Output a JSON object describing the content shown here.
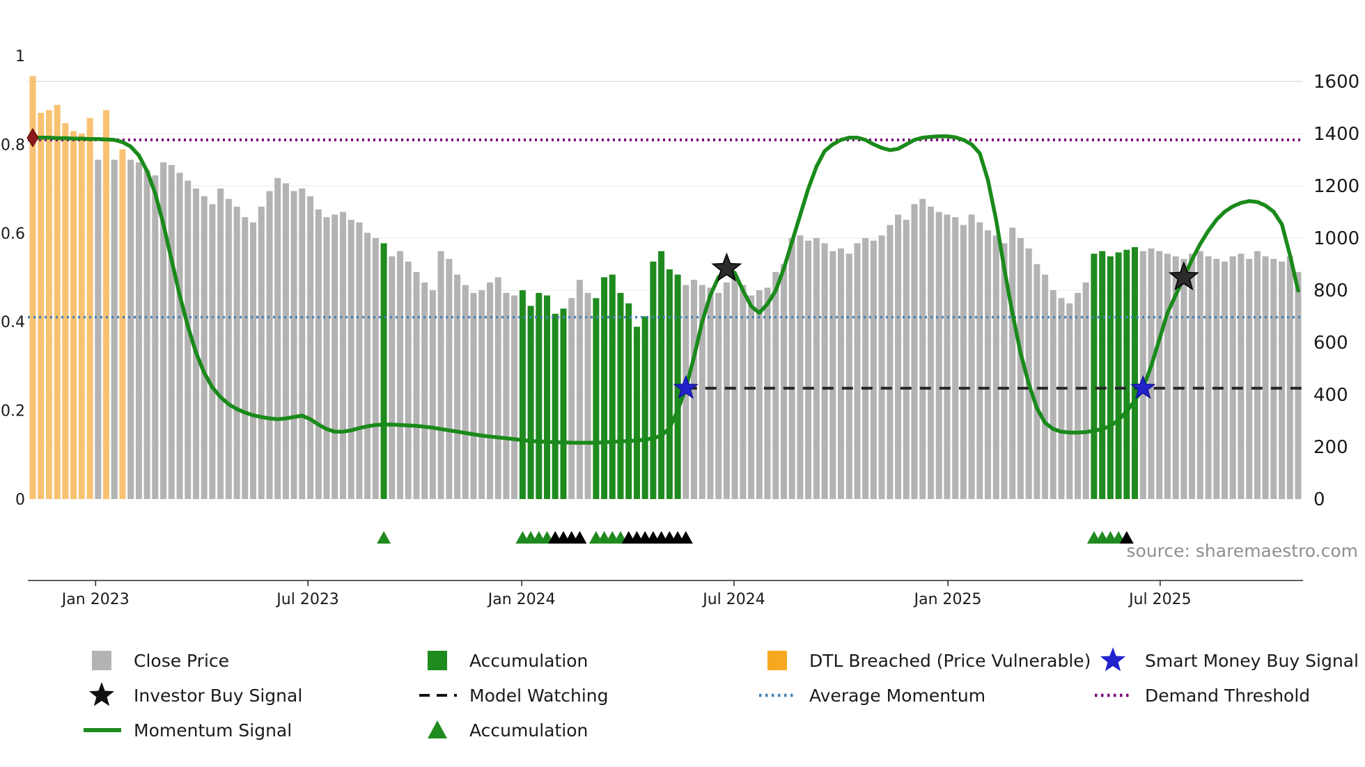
{
  "chart_data": {
    "type": "bar",
    "title": "",
    "annotations": {
      "source": "source: sharemaestro.com"
    },
    "left_axis": {
      "labels": [
        "0",
        "0.2",
        "0.4",
        "0.6",
        "0.8",
        "1"
      ],
      "values": [
        0,
        0.2,
        0.4,
        0.6,
        0.8,
        1
      ],
      "range": [
        0,
        1
      ]
    },
    "right_axis": {
      "values": [
        0,
        200,
        400,
        600,
        800,
        1000,
        1200,
        1400,
        1600
      ],
      "range": [
        0,
        1600
      ]
    },
    "x_ticks": [
      {
        "label": "Jan 2023",
        "i": 7.7
      },
      {
        "label": "Jul 2023",
        "i": 33.7
      },
      {
        "label": "Jan 2024",
        "i": 59.9
      },
      {
        "label": "Jul 2024",
        "i": 85.9
      },
      {
        "label": "Jan 2025",
        "i": 112.1
      },
      {
        "label": "Jul 2025",
        "i": 138.1
      }
    ],
    "bar_category_legend": {
      "g": "Close Price",
      "d": "DTL Breached (Price Vulnerable)",
      "a": "Accumulation"
    },
    "bars": [
      [
        1620,
        "d"
      ],
      [
        1480,
        "d"
      ],
      [
        1490,
        "d"
      ],
      [
        1510,
        "d"
      ],
      [
        1440,
        "d"
      ],
      [
        1410,
        "d"
      ],
      [
        1400,
        "d"
      ],
      [
        1460,
        "d"
      ],
      [
        1300,
        "g"
      ],
      [
        1490,
        "d"
      ],
      [
        1300,
        "g"
      ],
      [
        1340,
        "d"
      ],
      [
        1300,
        "g"
      ],
      [
        1290,
        "g"
      ],
      [
        1260,
        "g"
      ],
      [
        1240,
        "g"
      ],
      [
        1290,
        "g"
      ],
      [
        1280,
        "g"
      ],
      [
        1250,
        "g"
      ],
      [
        1220,
        "g"
      ],
      [
        1190,
        "g"
      ],
      [
        1160,
        "g"
      ],
      [
        1130,
        "g"
      ],
      [
        1190,
        "g"
      ],
      [
        1150,
        "g"
      ],
      [
        1120,
        "g"
      ],
      [
        1080,
        "g"
      ],
      [
        1060,
        "g"
      ],
      [
        1120,
        "g"
      ],
      [
        1180,
        "g"
      ],
      [
        1230,
        "g"
      ],
      [
        1210,
        "g"
      ],
      [
        1180,
        "g"
      ],
      [
        1190,
        "g"
      ],
      [
        1160,
        "g"
      ],
      [
        1110,
        "g"
      ],
      [
        1080,
        "g"
      ],
      [
        1090,
        "g"
      ],
      [
        1100,
        "g"
      ],
      [
        1070,
        "g"
      ],
      [
        1060,
        "g"
      ],
      [
        1020,
        "g"
      ],
      [
        1000,
        "g"
      ],
      [
        980,
        "a"
      ],
      [
        930,
        "g"
      ],
      [
        950,
        "g"
      ],
      [
        910,
        "g"
      ],
      [
        870,
        "g"
      ],
      [
        830,
        "g"
      ],
      [
        800,
        "g"
      ],
      [
        950,
        "g"
      ],
      [
        920,
        "g"
      ],
      [
        860,
        "g"
      ],
      [
        820,
        "g"
      ],
      [
        790,
        "g"
      ],
      [
        800,
        "g"
      ],
      [
        830,
        "g"
      ],
      [
        850,
        "g"
      ],
      [
        790,
        "g"
      ],
      [
        780,
        "g"
      ],
      [
        800,
        "a"
      ],
      [
        740,
        "a"
      ],
      [
        790,
        "a"
      ],
      [
        780,
        "a"
      ],
      [
        710,
        "a"
      ],
      [
        730,
        "a"
      ],
      [
        770,
        "g"
      ],
      [
        840,
        "g"
      ],
      [
        790,
        "g"
      ],
      [
        770,
        "a"
      ],
      [
        850,
        "a"
      ],
      [
        860,
        "a"
      ],
      [
        790,
        "a"
      ],
      [
        750,
        "a"
      ],
      [
        660,
        "a"
      ],
      [
        700,
        "a"
      ],
      [
        910,
        "a"
      ],
      [
        950,
        "a"
      ],
      [
        880,
        "a"
      ],
      [
        860,
        "a"
      ],
      [
        820,
        "g"
      ],
      [
        840,
        "g"
      ],
      [
        820,
        "g"
      ],
      [
        810,
        "g"
      ],
      [
        790,
        "g"
      ],
      [
        830,
        "g"
      ],
      [
        850,
        "g"
      ],
      [
        820,
        "g"
      ],
      [
        780,
        "g"
      ],
      [
        800,
        "g"
      ],
      [
        810,
        "g"
      ],
      [
        870,
        "g"
      ],
      [
        900,
        "g"
      ],
      [
        1000,
        "g"
      ],
      [
        1010,
        "g"
      ],
      [
        990,
        "g"
      ],
      [
        1000,
        "g"
      ],
      [
        980,
        "g"
      ],
      [
        950,
        "g"
      ],
      [
        960,
        "g"
      ],
      [
        940,
        "g"
      ],
      [
        980,
        "g"
      ],
      [
        1000,
        "g"
      ],
      [
        990,
        "g"
      ],
      [
        1010,
        "g"
      ],
      [
        1050,
        "g"
      ],
      [
        1090,
        "g"
      ],
      [
        1070,
        "g"
      ],
      [
        1130,
        "g"
      ],
      [
        1150,
        "g"
      ],
      [
        1120,
        "g"
      ],
      [
        1100,
        "g"
      ],
      [
        1090,
        "g"
      ],
      [
        1080,
        "g"
      ],
      [
        1050,
        "g"
      ],
      [
        1090,
        "g"
      ],
      [
        1060,
        "g"
      ],
      [
        1030,
        "g"
      ],
      [
        1010,
        "g"
      ],
      [
        980,
        "g"
      ],
      [
        1040,
        "g"
      ],
      [
        1000,
        "g"
      ],
      [
        960,
        "g"
      ],
      [
        900,
        "g"
      ],
      [
        860,
        "g"
      ],
      [
        800,
        "g"
      ],
      [
        770,
        "g"
      ],
      [
        750,
        "g"
      ],
      [
        790,
        "g"
      ],
      [
        830,
        "g"
      ],
      [
        940,
        "a"
      ],
      [
        950,
        "a"
      ],
      [
        930,
        "a"
      ],
      [
        945,
        "a"
      ],
      [
        955,
        "a"
      ],
      [
        965,
        "a"
      ],
      [
        950,
        "g"
      ],
      [
        960,
        "g"
      ],
      [
        950,
        "g"
      ],
      [
        940,
        "g"
      ],
      [
        930,
        "g"
      ],
      [
        920,
        "g"
      ],
      [
        940,
        "g"
      ],
      [
        950,
        "g"
      ],
      [
        930,
        "g"
      ],
      [
        920,
        "g"
      ],
      [
        910,
        "g"
      ],
      [
        930,
        "g"
      ],
      [
        940,
        "g"
      ],
      [
        920,
        "g"
      ],
      [
        950,
        "g"
      ],
      [
        930,
        "g"
      ],
      [
        920,
        "g"
      ],
      [
        910,
        "g"
      ],
      [
        930,
        "g"
      ],
      [
        870,
        "g"
      ]
    ],
    "momentum_line": {
      "name": "Momentum Signal",
      "axis": "left",
      "values": [
        0.815,
        0.815,
        0.815,
        0.814,
        0.814,
        0.813,
        0.813,
        0.812,
        0.812,
        0.811,
        0.81,
        0.805,
        0.795,
        0.775,
        0.74,
        0.69,
        0.62,
        0.54,
        0.46,
        0.39,
        0.33,
        0.285,
        0.252,
        0.23,
        0.214,
        0.203,
        0.195,
        0.189,
        0.185,
        0.182,
        0.18,
        0.182,
        0.185,
        0.188,
        0.18,
        0.168,
        0.158,
        0.152,
        0.152,
        0.155,
        0.16,
        0.164,
        0.167,
        0.168,
        0.168,
        0.167,
        0.166,
        0.165,
        0.163,
        0.161,
        0.158,
        0.155,
        0.152,
        0.149,
        0.146,
        0.143,
        0.141,
        0.139,
        0.137,
        0.135,
        0.133,
        0.131,
        0.13,
        0.129,
        0.128,
        0.128,
        0.127,
        0.127,
        0.127,
        0.127,
        0.128,
        0.129,
        0.13,
        0.131,
        0.132,
        0.134,
        0.137,
        0.143,
        0.16,
        0.2,
        0.25,
        0.32,
        0.4,
        0.46,
        0.5,
        0.52,
        0.51,
        0.47,
        0.435,
        0.42,
        0.44,
        0.47,
        0.52,
        0.58,
        0.64,
        0.7,
        0.75,
        0.785,
        0.8,
        0.81,
        0.815,
        0.815,
        0.81,
        0.8,
        0.792,
        0.787,
        0.79,
        0.8,
        0.81,
        0.815,
        0.817,
        0.818,
        0.818,
        0.816,
        0.81,
        0.8,
        0.78,
        0.72,
        0.63,
        0.52,
        0.42,
        0.33,
        0.26,
        0.205,
        0.172,
        0.158,
        0.152,
        0.15,
        0.15,
        0.151,
        0.154,
        0.158,
        0.165,
        0.178,
        0.198,
        0.222,
        0.25,
        0.3,
        0.36,
        0.42,
        0.46,
        0.5,
        0.54,
        0.575,
        0.605,
        0.63,
        0.648,
        0.66,
        0.668,
        0.672,
        0.67,
        0.662,
        0.648,
        0.62,
        0.55,
        0.47
      ]
    },
    "hlines": [
      {
        "name": "demand-threshold-line",
        "label": "Demand Threshold",
        "v": 0.81,
        "color": "#7a007a",
        "dash": "3 5",
        "width": 4,
        "from_i": null
      },
      {
        "name": "average-momentum-line",
        "label": "Average Momentum",
        "v": 0.41,
        "color": "#4682b4",
        "dash": "3 5",
        "width": 3.5,
        "from_i": null
      },
      {
        "name": "model-watching-line",
        "label": "Model Watching",
        "v": 0.25,
        "color": "#262626",
        "dash": "16 12",
        "width": 4,
        "from_i": 80
      }
    ],
    "markers": {
      "start_marker": {
        "i": 0,
        "v": 0.815
      },
      "investor_buy_signals": [
        {
          "i": 85,
          "v": 0.52
        },
        {
          "i": 141,
          "v": 0.5
        }
      ],
      "smart_money_buy_signals": [
        {
          "i": 80,
          "v": 0.25
        },
        {
          "i": 136,
          "v": 0.25
        }
      ],
      "accumulation_triangles": [
        {
          "i": 43,
          "c": "g"
        },
        {
          "i": 60,
          "c": "g"
        },
        {
          "i": 61,
          "c": "g"
        },
        {
          "i": 62,
          "c": "g"
        },
        {
          "i": 63,
          "c": "g"
        },
        {
          "i": 64,
          "c": "k"
        },
        {
          "i": 65,
          "c": "k"
        },
        {
          "i": 66,
          "c": "k"
        },
        {
          "i": 67,
          "c": "k"
        },
        {
          "i": 69,
          "c": "g"
        },
        {
          "i": 70,
          "c": "g"
        },
        {
          "i": 71,
          "c": "g"
        },
        {
          "i": 72,
          "c": "g"
        },
        {
          "i": 73,
          "c": "k"
        },
        {
          "i": 74,
          "c": "k"
        },
        {
          "i": 75,
          "c": "k"
        },
        {
          "i": 76,
          "c": "k"
        },
        {
          "i": 77,
          "c": "k"
        },
        {
          "i": 78,
          "c": "k"
        },
        {
          "i": 79,
          "c": "k"
        },
        {
          "i": 80,
          "c": "k"
        },
        {
          "i": 130,
          "c": "g"
        },
        {
          "i": 131,
          "c": "g"
        },
        {
          "i": 132,
          "c": "g"
        },
        {
          "i": 133,
          "c": "g"
        },
        {
          "i": 134,
          "c": "k"
        }
      ]
    },
    "colors": {
      "close": "#b3b3b3",
      "dtl": "#f8c272",
      "accumulation": "#1f8b1f",
      "momentum_line": "#1a8a1a",
      "demand_threshold": "#7a007a",
      "average_momentum": "#4682b4",
      "model_watching": "#262626",
      "investor_star": "#2b2b2b",
      "smart_money_star": "#2222cc",
      "start_diamond": "#8b1a1a"
    }
  },
  "legend": {
    "items": [
      {
        "label": "Close Price",
        "marker": "square",
        "color": "#b3b3b3"
      },
      {
        "label": "Accumulation",
        "marker": "square",
        "color": "#1f8b1f"
      },
      {
        "label": "DTL Breached (Price Vulnerable)",
        "marker": "square",
        "color": "#f6a821"
      },
      {
        "label": "Smart Money Buy Signal",
        "marker": "star",
        "color": "#2222cc"
      },
      {
        "label": "Investor Buy Signal",
        "marker": "star",
        "color": "#111111"
      },
      {
        "label": "Model Watching",
        "marker": "dash",
        "color": "#111111"
      },
      {
        "label": "Average Momentum",
        "marker": "dot",
        "color": "#4682b4"
      },
      {
        "label": "Demand Threshold",
        "marker": "dot",
        "color": "#7a007a"
      },
      {
        "label": "Momentum Signal",
        "marker": "line",
        "color": "#1f8b1f"
      },
      {
        "label": "Accumulation",
        "marker": "triangle",
        "color": "#1f8b1f"
      }
    ]
  }
}
